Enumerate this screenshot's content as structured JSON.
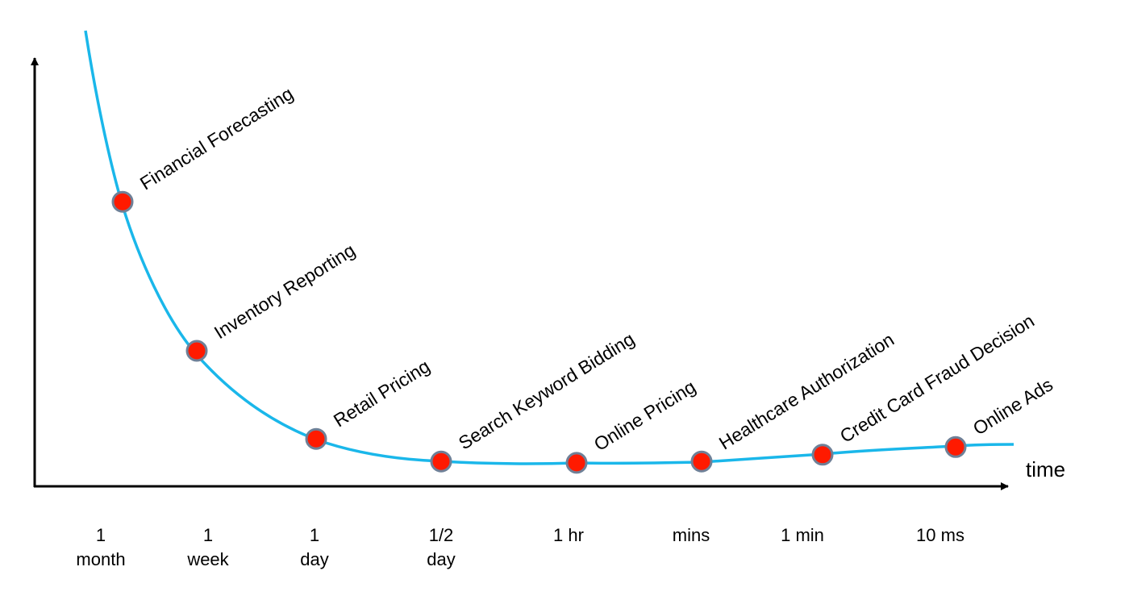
{
  "chart_data": {
    "type": "line",
    "title": "",
    "xlabel": "time",
    "ylabel": "",
    "grid": false,
    "legend": "none",
    "categories": [
      [
        "1",
        "month"
      ],
      [
        "1",
        "week"
      ],
      [
        "1",
        "day"
      ],
      [
        "1/2",
        "day"
      ],
      [
        "1 hr"
      ],
      [
        "mins"
      ],
      [
        "1 min"
      ],
      [
        "10 ms"
      ]
    ],
    "points": [
      {
        "label": "Financial Forecasting",
        "category": 0,
        "y": 0.63
      },
      {
        "label": "Inventory Reporting",
        "category": 1,
        "y": 0.3
      },
      {
        "label": "Retail Pricing",
        "category": 2,
        "y": 0.105
      },
      {
        "label": "Search Keyword Bidding",
        "category": 3,
        "y": 0.055
      },
      {
        "label": "Online Pricing",
        "category": 4,
        "y": 0.052
      },
      {
        "label": "Healthcare Authorization",
        "category": 5,
        "y": 0.055
      },
      {
        "label": "Credit Card Fraud Decision",
        "category": 6,
        "y": 0.07
      },
      {
        "label": "Online Ads",
        "category": 7,
        "y": 0.087
      }
    ],
    "colors": {
      "curve": "#1ab7ea",
      "marker_fill": "#ff1a00",
      "marker_stroke": "#6f8097",
      "axis": "#000000"
    }
  }
}
